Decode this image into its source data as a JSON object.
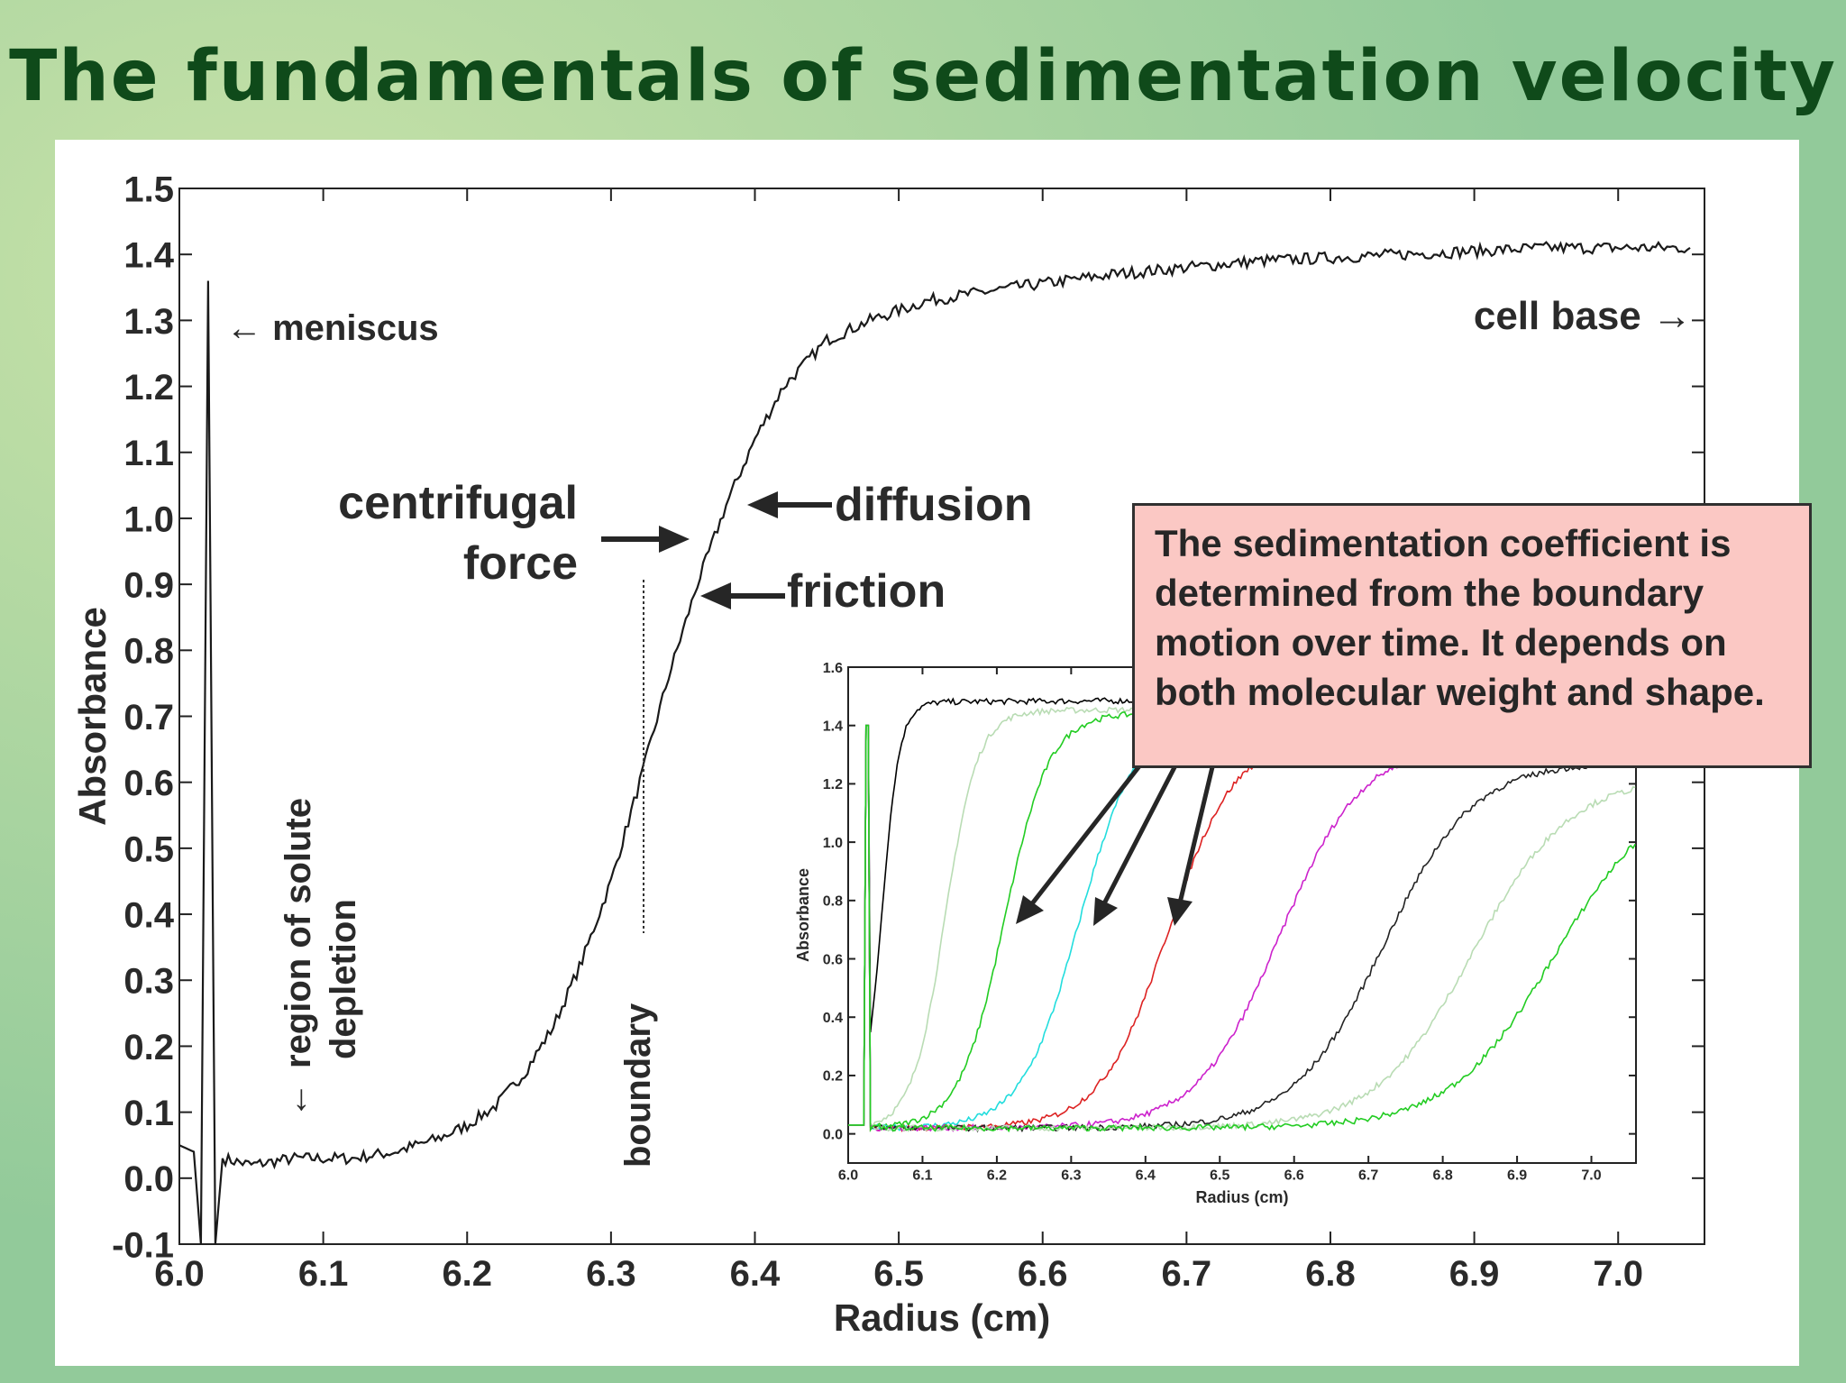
{
  "title": "The fundamentals of sedimentation velocity",
  "colors": {
    "title": "#0f4a1a",
    "callout_bg": "#fbc8c4",
    "curve": "#1a1a1a"
  },
  "callout_text": "The sedimentation coefficient is determined from the boundary motion over time. It depends on both molecular weight and shape.",
  "annotations": {
    "meniscus": "← meniscus",
    "cell_base": "cell base →",
    "centrifugal_1": "centrifugal",
    "centrifugal_2": "force",
    "diffusion": "diffusion",
    "friction": "friction",
    "region_1": "region of solute",
    "region_2": "depletion",
    "boundary": "boundary"
  },
  "chart_data": [
    {
      "type": "line",
      "xlabel": "Radius (cm)",
      "ylabel": "Absorbance",
      "xlim": [
        6.0,
        7.06
      ],
      "ylim": [
        -0.1,
        1.5
      ],
      "xticks": [
        "6.0",
        "6.1",
        "6.2",
        "6.3",
        "6.4",
        "6.5",
        "6.6",
        "6.7",
        "6.8",
        "6.9",
        "7.0"
      ],
      "yticks": [
        "-0.1",
        "0.0",
        "0.1",
        "0.2",
        "0.3",
        "0.4",
        "0.5",
        "0.6",
        "0.7",
        "0.8",
        "0.9",
        "1.0",
        "1.1",
        "1.2",
        "1.3",
        "1.4",
        "1.5"
      ],
      "grid": false,
      "series": [
        {
          "color": "#1a1a1a",
          "points": [
            [
              6.0,
              0.05
            ],
            [
              6.01,
              0.04
            ],
            [
              6.015,
              -0.1
            ],
            [
              6.02,
              1.36
            ],
            [
              6.025,
              -0.1
            ],
            [
              6.03,
              0.03
            ],
            [
              6.05,
              0.02
            ],
            [
              6.08,
              0.03
            ],
            [
              6.12,
              0.03
            ],
            [
              6.15,
              0.04
            ],
            [
              6.18,
              0.06
            ],
            [
              6.2,
              0.08
            ],
            [
              6.22,
              0.11
            ],
            [
              6.24,
              0.16
            ],
            [
              6.26,
              0.23
            ],
            [
              6.28,
              0.33
            ],
            [
              6.3,
              0.45
            ],
            [
              6.32,
              0.6
            ],
            [
              6.34,
              0.76
            ],
            [
              6.36,
              0.9
            ],
            [
              6.38,
              1.02
            ],
            [
              6.4,
              1.12
            ],
            [
              6.42,
              1.2
            ],
            [
              6.45,
              1.27
            ],
            [
              6.48,
              1.3
            ],
            [
              6.52,
              1.33
            ],
            [
              6.58,
              1.35
            ],
            [
              6.65,
              1.37
            ],
            [
              6.75,
              1.39
            ],
            [
              6.85,
              1.4
            ],
            [
              6.95,
              1.41
            ],
            [
              7.05,
              1.41
            ]
          ]
        }
      ]
    },
    {
      "type": "line",
      "xlabel": "Radius (cm)",
      "ylabel": "Absorbance",
      "xlim": [
        6.0,
        7.06
      ],
      "ylim": [
        -0.1,
        1.6
      ],
      "xticks": [
        "6.0",
        "6.1",
        "6.2",
        "6.3",
        "6.4",
        "6.5",
        "6.6",
        "6.7",
        "6.8",
        "6.9",
        "7.0"
      ],
      "yticks": [
        "0.0",
        "0.2",
        "0.4",
        "0.6",
        "0.8",
        "1.0",
        "1.2",
        "1.4",
        "1.6"
      ],
      "grid": false,
      "series": [
        {
          "color": "#000000",
          "midpoint": 6.045,
          "width": 0.012,
          "plateau": 1.46,
          "slope": 0.05
        },
        {
          "color": "#b9dcb4",
          "midpoint": 6.13,
          "width": 0.022,
          "plateau": 1.43,
          "slope": 0.05
        },
        {
          "color": "#22cc22",
          "midpoint": 6.21,
          "width": 0.03,
          "plateau": 1.42,
          "slope": 0.05
        },
        {
          "color": "#22dddd",
          "midpoint": 6.31,
          "width": 0.038,
          "plateau": 1.4,
          "slope": 0.05
        },
        {
          "color": "#dd2222",
          "midpoint": 6.43,
          "width": 0.045,
          "plateau": 1.34,
          "slope": 0.05
        },
        {
          "color": "#cc22cc",
          "midpoint": 6.58,
          "width": 0.055,
          "plateau": 1.31,
          "slope": 0.05
        },
        {
          "color": "#222222",
          "midpoint": 6.72,
          "width": 0.06,
          "plateau": 1.25,
          "slope": 0.05
        },
        {
          "color": "#b9dcb4",
          "midpoint": 6.84,
          "width": 0.065,
          "plateau": 1.2,
          "slope": 0.05
        },
        {
          "color": "#22cc22",
          "midpoint": 6.95,
          "width": 0.07,
          "plateau": 1.18,
          "slope": 0.05
        }
      ]
    }
  ]
}
